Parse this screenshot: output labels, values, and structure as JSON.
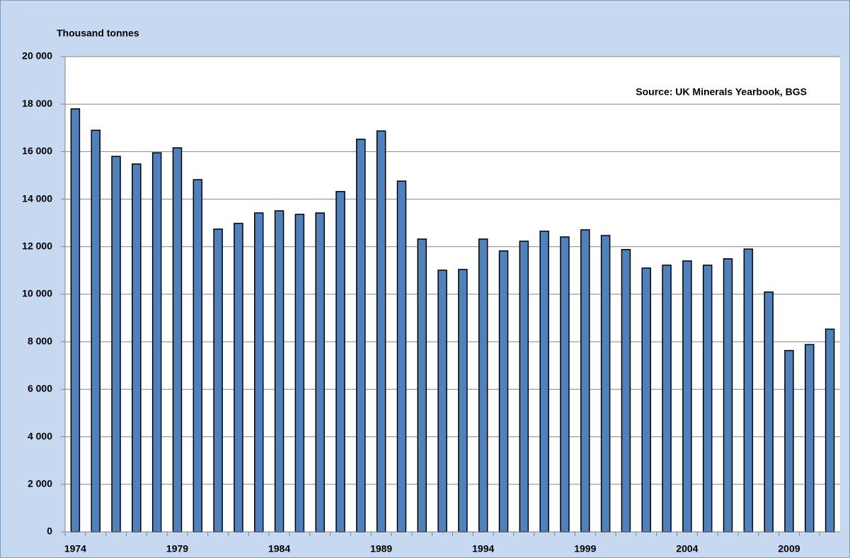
{
  "chart_data": {
    "type": "bar",
    "y_label": "Thousand tonnes",
    "annotation": "Source: UK Minerals Yearbook, BGS",
    "categories": [
      "1974",
      null,
      null,
      null,
      null,
      "1979",
      null,
      null,
      null,
      null,
      "1984",
      null,
      null,
      null,
      null,
      "1989",
      null,
      null,
      null,
      null,
      "1994",
      null,
      null,
      null,
      null,
      "1999",
      null,
      null,
      null,
      null,
      "2004",
      null,
      null,
      null,
      null,
      "2009",
      null,
      null
    ],
    "values": [
      17800,
      16900,
      15800,
      15480,
      15950,
      16160,
      14820,
      12740,
      12980,
      13420,
      13510,
      13360,
      13420,
      14320,
      16520,
      16870,
      14760,
      12320,
      11010,
      11040,
      12320,
      11820,
      12230,
      12650,
      12410,
      12710,
      12470,
      11880,
      11100,
      11220,
      11400,
      11220,
      11490,
      11900,
      10090,
      7630,
      7880,
      8530
    ],
    "color": "#4f81bd",
    "ylim": [
      0,
      20000
    ],
    "yticks": [
      0,
      {
        "value": 2000,
        "label": "2 000"
      },
      {
        "value": 4000,
        "label": "4 000"
      },
      {
        "value": 6000,
        "label": "6 000"
      },
      {
        "value": 8000,
        "label": "8 000"
      },
      {
        "value": 10000,
        "label": "10 000"
      },
      {
        "value": 12000,
        "label": "12 000"
      },
      {
        "value": 14000,
        "label": "14 000"
      },
      {
        "value": 16000,
        "label": "16 000"
      },
      {
        "value": 18000,
        "label": "18 000"
      },
      {
        "value": 20000,
        "label": "20 000"
      }
    ],
    "grid": true
  }
}
